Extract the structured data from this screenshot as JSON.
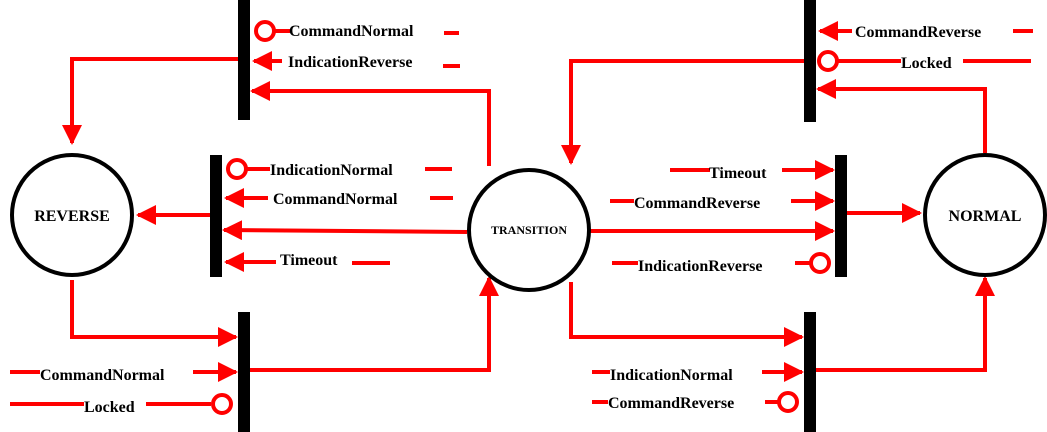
{
  "places": {
    "reverse": "REVERSE",
    "transition": "TRANSITION",
    "normal": "NORMAL"
  },
  "signals": {
    "t1_command_normal": "CommandNormal",
    "t1_indication_reverse": "IndicationReverse",
    "t2_indication_normal": "IndicationNormal",
    "t2_command_normal": "CommandNormal",
    "t2_timeout": "Timeout",
    "t3_command_normal": "CommandNormal",
    "t3_locked": "Locked",
    "t4_command_reverse": "CommandReverse",
    "t4_locked": "Locked",
    "t5_timeout": "Timeout",
    "t5_command_reverse": "CommandReverse",
    "t5_indication_reverse": "IndicationReverse",
    "t6_indication_normal": "IndicationNormal",
    "t6_command_reverse": "CommandReverse"
  },
  "colors": {
    "arc": "#ff0000",
    "node_stroke": "#000000",
    "bar": "#000000"
  }
}
